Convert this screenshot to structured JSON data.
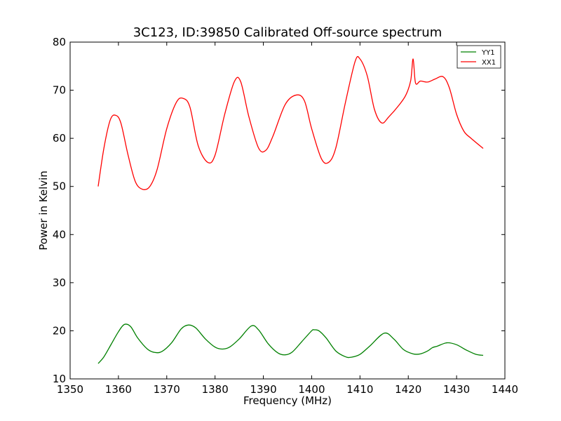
{
  "chart_data": {
    "type": "line",
    "title": "3C123, ID:39850 Calibrated Off-source spectrum",
    "xlabel": "Frequency (MHz)",
    "ylabel": "Power in Kelvin",
    "xlim": [
      1350,
      1440
    ],
    "ylim": [
      10,
      80
    ],
    "xticks": [
      1350,
      1360,
      1370,
      1380,
      1390,
      1400,
      1410,
      1420,
      1430,
      1440
    ],
    "yticks": [
      10,
      20,
      30,
      40,
      50,
      60,
      70,
      80
    ],
    "grid": false,
    "legend_position": "top-right",
    "series": [
      {
        "name": "YY1",
        "color": "#008000",
        "x": [
          1355.8,
          1357,
          1358.5,
          1360,
          1361.2,
          1362.5,
          1364,
          1366,
          1367.5,
          1369,
          1371,
          1373,
          1374.5,
          1376,
          1378,
          1380,
          1381.5,
          1383,
          1385,
          1387.5,
          1389,
          1391,
          1393,
          1394.5,
          1396,
          1398,
          1400,
          1400.5,
          1401.5,
          1403,
          1405,
          1407,
          1408.2,
          1410,
          1412,
          1415,
          1417,
          1419,
          1421,
          1422.5,
          1424,
          1425,
          1426,
          1428,
          1430,
          1432,
          1434,
          1435.5
        ],
        "y": [
          13.2,
          14.6,
          17.2,
          19.8,
          21.3,
          20.9,
          18.5,
          16.2,
          15.5,
          15.7,
          17.5,
          20.4,
          21.2,
          20.6,
          18.3,
          16.6,
          16.2,
          16.6,
          18.3,
          21.0,
          20.2,
          17.3,
          15.4,
          15.0,
          15.6,
          17.8,
          20.0,
          20.2,
          20.0,
          18.5,
          15.8,
          14.6,
          14.5,
          15.1,
          16.8,
          19.5,
          18.3,
          16.1,
          15.2,
          15.2,
          15.8,
          16.5,
          16.8,
          17.5,
          17.1,
          16.0,
          15.1,
          14.9
        ]
      },
      {
        "name": "XX1",
        "color": "#ff0000",
        "x": [
          1355.8,
          1357,
          1358.3,
          1359.4,
          1360.5,
          1362,
          1363.5,
          1365,
          1366.5,
          1368,
          1370,
          1372,
          1373.4,
          1374.8,
          1376.5,
          1378.5,
          1380,
          1382,
          1384,
          1385.3,
          1387,
          1389,
          1390.5,
          1392,
          1394.5,
          1396.8,
          1398.5,
          1400,
          1402,
          1403.5,
          1405,
          1407,
          1409,
          1410,
          1411.5,
          1413,
          1414.5,
          1416,
          1418,
          1419.5,
          1420.5,
          1421,
          1421.5,
          1422.5,
          1424,
          1425.5,
          1427.2,
          1428.5,
          1430,
          1431.5,
          1433,
          1435.5
        ],
        "y": [
          50.0,
          58.0,
          63.8,
          64.8,
          63.2,
          56.5,
          51.0,
          49.4,
          50.0,
          53.5,
          62.0,
          67.5,
          68.3,
          66.5,
          58.5,
          55.0,
          56.5,
          65.0,
          71.8,
          71.8,
          64.5,
          58.0,
          57.5,
          60.5,
          67.0,
          69.0,
          67.8,
          62.0,
          55.8,
          55.0,
          58.0,
          67.5,
          76.0,
          76.5,
          73.0,
          66.0,
          63.2,
          64.5,
          66.8,
          69.0,
          72.0,
          76.5,
          71.5,
          71.9,
          71.7,
          72.3,
          72.8,
          70.5,
          65.0,
          61.5,
          60.0,
          57.9
        ]
      }
    ]
  }
}
